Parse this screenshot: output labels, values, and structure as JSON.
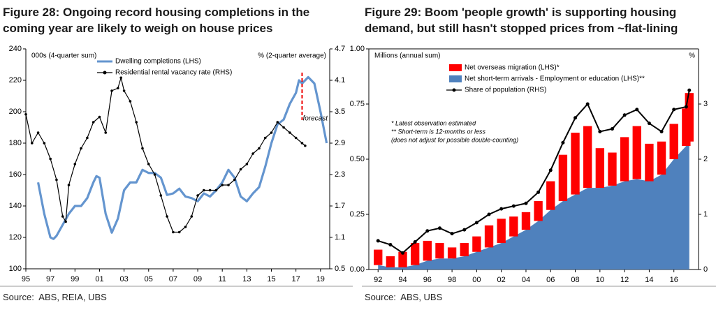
{
  "chart_data": [
    {
      "type": "line",
      "title": "Figure 28: Ongoing record housing completions in the coming year are likely to weigh on house prices",
      "source": "Source:  ABS, REIA, UBS",
      "ylabel": "000s (4-quarter sum)",
      "y2label": "% (2-quarter average)",
      "annotations": [
        {
          "text": "forecast",
          "x": 2017.5
        }
      ],
      "xlim": [
        1995,
        2019.75
      ],
      "xticks": [
        {
          "value": 1995,
          "label": "95"
        },
        {
          "value": 1997,
          "label": "97"
        },
        {
          "value": 1999,
          "label": "99"
        },
        {
          "value": 2001,
          "label": "01"
        },
        {
          "value": 2003,
          "label": "03"
        },
        {
          "value": 2005,
          "label": "05"
        },
        {
          "value": 2007,
          "label": "07"
        },
        {
          "value": 2009,
          "label": "09"
        },
        {
          "value": 2011,
          "label": "11"
        },
        {
          "value": 2013,
          "label": "13"
        },
        {
          "value": 2015,
          "label": "15"
        },
        {
          "value": 2017,
          "label": "17"
        },
        {
          "value": 2019,
          "label": "19"
        }
      ],
      "ylim": [
        100,
        240
      ],
      "yticks": [
        100,
        120,
        140,
        160,
        180,
        200,
        220,
        240
      ],
      "y2lim": [
        0.5,
        4.7
      ],
      "y2ticks": [
        0.5,
        1.1,
        1.7,
        2.3,
        2.9,
        3.5,
        4.1,
        4.7
      ],
      "grid": false,
      "series": [
        {
          "name": "Dwelling completions (LHS)",
          "color": "#6495cf",
          "x": [
            1996,
            1996.5,
            1997,
            1997.25,
            1997.5,
            1998,
            1998.5,
            1999,
            1999.5,
            2000,
            2000.5,
            2000.75,
            2001,
            2001.5,
            2002,
            2002.5,
            2003,
            2003.5,
            2004,
            2004.5,
            2005,
            2005.5,
            2006,
            2006.5,
            2007,
            2007.5,
            2008,
            2008.5,
            2009,
            2009.5,
            2010,
            2010.5,
            2011,
            2011.5,
            2012,
            2012.5,
            2013,
            2013.5,
            2014,
            2014.5,
            2015,
            2015.5,
            2016,
            2016.5,
            2017,
            2017.25,
            2017.5,
            2018,
            2018.5,
            2019,
            2019.5
          ],
          "values": [
            155,
            135,
            120,
            119,
            121,
            128,
            135,
            140,
            140,
            145,
            155,
            159,
            158,
            135,
            123,
            132,
            150,
            155,
            155,
            163,
            161,
            161,
            158,
            147,
            148,
            151,
            146,
            145,
            143,
            148,
            146,
            150,
            155,
            163,
            158,
            146,
            143,
            148,
            152,
            165,
            180,
            192,
            195,
            205,
            212,
            220,
            218,
            222,
            218,
            200,
            180
          ]
        },
        {
          "name": "Residential rental vacancy rate (RHS)",
          "color": "#000000",
          "axis": "y2",
          "x": [
            1995,
            1995.5,
            1996,
            1996.5,
            1997,
            1997.5,
            1998,
            1998.25,
            1998.5,
            1999,
            1999.5,
            2000,
            2000.5,
            2001,
            2001.5,
            2002,
            2002.5,
            2002.75,
            2003,
            2003.5,
            2004,
            2004.5,
            2005,
            2005.5,
            2006,
            2006.5,
            2007,
            2007.5,
            2008,
            2008.5,
            2009,
            2009.5,
            2010,
            2010.5,
            2011,
            2011.5,
            2012,
            2012.5,
            2013,
            2013.5,
            2014,
            2014.5,
            2015,
            2015.5,
            2016,
            2016.5,
            2017,
            2017.5,
            2017.75
          ],
          "values": [
            3.45,
            2.9,
            3.1,
            2.9,
            2.6,
            2.2,
            1.5,
            1.4,
            2.1,
            2.5,
            2.8,
            3.0,
            3.3,
            3.4,
            3.1,
            3.9,
            3.95,
            4.15,
            3.9,
            3.7,
            3.3,
            2.8,
            2.5,
            2.3,
            1.9,
            1.5,
            1.2,
            1.2,
            1.3,
            1.5,
            1.9,
            2.0,
            2.0,
            2.0,
            2.1,
            2.1,
            2.2,
            2.4,
            2.5,
            2.7,
            2.8,
            3.0,
            3.1,
            3.3,
            3.2,
            3.1,
            3.0,
            2.9,
            2.85
          ]
        }
      ]
    },
    {
      "type": "bar",
      "title": "Figure 29: Boom 'people growth' is supporting housing demand, but still hasn't stopped prices from ~flat-lining",
      "source": "Source:  ABS, UBS",
      "ylabel": "Millions (annual sum)",
      "y2label": "%",
      "notes": [
        "* Latest observation estimated",
        "** Short-term is 12-months or less",
        "(does not adjust for possible double-counting)"
      ],
      "stacked": true,
      "xlim": [
        1991.25,
        2018
      ],
      "xticks": [
        {
          "value": 1992,
          "label": "92"
        },
        {
          "value": 1994,
          "label": "94"
        },
        {
          "value": 1996,
          "label": "96"
        },
        {
          "value": 1998,
          "label": "98"
        },
        {
          "value": 2000,
          "label": "00"
        },
        {
          "value": 2002,
          "label": "02"
        },
        {
          "value": 2004,
          "label": "04"
        },
        {
          "value": 2006,
          "label": "06"
        },
        {
          "value": 2008,
          "label": "08"
        },
        {
          "value": 2010,
          "label": "10"
        },
        {
          "value": 2012,
          "label": "12"
        },
        {
          "value": 2014,
          "label": "14"
        },
        {
          "value": 2016,
          "label": "16"
        }
      ],
      "ylim": [
        0,
        1
      ],
      "yticks": [
        {
          "value": 0,
          "label": "0.00"
        },
        0.25,
        {
          "value": 0.5,
          "label": "0.50"
        },
        0.75,
        {
          "value": 1,
          "label": "1.00"
        }
      ],
      "y2lim": [
        0,
        4
      ],
      "y2ticks": [
        0,
        1,
        2,
        3
      ],
      "grid": false,
      "x": [
        1992,
        1993,
        1994,
        1995,
        1996,
        1997,
        1998,
        1999,
        2000,
        2001,
        2002,
        2003,
        2004,
        2005,
        2006,
        2007,
        2008,
        2009,
        2010,
        2011,
        2012,
        2013,
        2014,
        2015,
        2016,
        2017,
        2017.25
      ],
      "series": [
        {
          "name": "Net overseas migration (LHS)*",
          "color": "#ff0000",
          "kind": "bar",
          "values": [
            0.07,
            0.05,
            0.07,
            0.1,
            0.09,
            0.07,
            0.05,
            0.06,
            0.07,
            0.1,
            0.11,
            0.09,
            0.08,
            0.09,
            0.13,
            0.21,
            0.28,
            0.28,
            0.18,
            0.15,
            0.2,
            0.24,
            0.17,
            0.15,
            0.16,
            0.17,
            0.22
          ]
        },
        {
          "name": "Net short-term arrivals - Employment or education (LHS)**",
          "color": "#4f81bd",
          "kind": "area",
          "values": [
            0.02,
            0.01,
            0.01,
            0.02,
            0.04,
            0.05,
            0.05,
            0.06,
            0.08,
            0.1,
            0.12,
            0.15,
            0.18,
            0.22,
            0.27,
            0.31,
            0.34,
            0.37,
            0.37,
            0.38,
            0.4,
            0.41,
            0.4,
            0.43,
            0.5,
            0.56,
            0.58
          ]
        },
        {
          "name": "Share of population (RHS)",
          "color": "#000000",
          "kind": "line",
          "axis": "y2",
          "values": [
            0.52,
            0.45,
            0.3,
            0.5,
            0.7,
            0.75,
            0.65,
            0.72,
            0.85,
            1.0,
            1.1,
            1.15,
            1.2,
            1.4,
            1.8,
            2.3,
            2.75,
            3.0,
            2.5,
            2.55,
            2.8,
            2.9,
            2.65,
            2.5,
            2.9,
            2.95,
            3.25
          ]
        }
      ]
    }
  ]
}
